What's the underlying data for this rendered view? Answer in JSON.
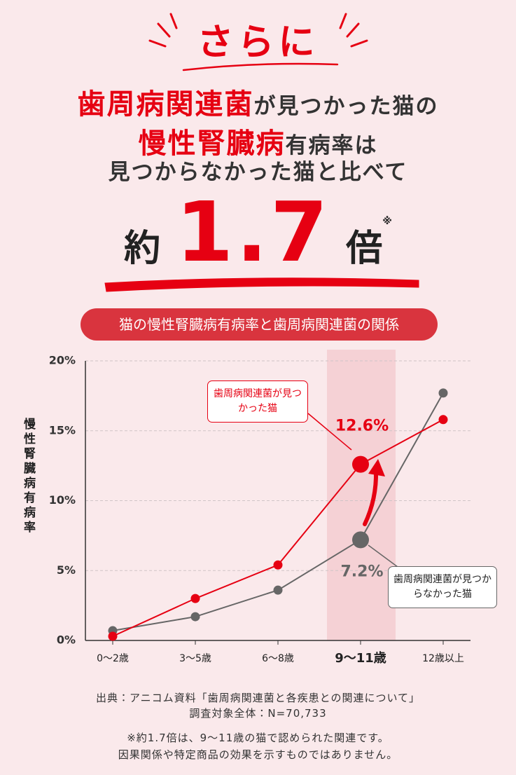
{
  "header": {
    "lead": "さらに",
    "line1": {
      "emphasis": "歯周病関連菌",
      "rest": "が見つかった猫の"
    },
    "line2": {
      "emphasis": "慢性腎臓病",
      "rest": "有病率は"
    },
    "line3": "見つからなかった猫と比べて",
    "ratio": {
      "prefix": "約",
      "number": "1.7",
      "suffix": "倍",
      "mark": "※"
    }
  },
  "chart_data": {
    "type": "line",
    "title": "猫の慢性腎臓病有病率と歯周病関連菌の関係",
    "y_label": "慢性腎臓病有病率",
    "categories": [
      "0〜2歳",
      "3〜5歳",
      "6〜8歳",
      "9〜11歳",
      "12歳以上"
    ],
    "highlight": 3,
    "series": [
      {
        "name": "歯周病関連菌が見つかった猫",
        "color": "#e60012",
        "values": [
          0.3,
          3.0,
          5.4,
          12.6,
          15.8
        ],
        "value_labels": [
          null,
          null,
          null,
          "12.6%",
          null
        ]
      },
      {
        "name": "歯周病関連菌が見つからなかった猫",
        "color": "#666666",
        "values": [
          0.7,
          1.7,
          3.6,
          7.2,
          17.7
        ],
        "value_labels": [
          null,
          null,
          null,
          "7.2%",
          null
        ]
      }
    ],
    "ylim": [
      0,
      20
    ],
    "yticks": [
      {
        "value": 0,
        "label": "0%"
      },
      {
        "value": 5,
        "label": "5%"
      },
      {
        "value": 10,
        "label": "10%"
      },
      {
        "value": 15,
        "label": "15%"
      },
      {
        "value": 20,
        "label": "20%"
      }
    ],
    "grid": true
  },
  "footer": {
    "source": "出典：アニコム資料「歯周病関連菌と各疾患との関連について」",
    "sample": "調査対象全体：N=70,733",
    "notes": [
      "※約1.7倍は、9〜11歳の猫で認められた関連です。",
      "因果関係や特定商品の効果を示すものではありません。"
    ]
  }
}
